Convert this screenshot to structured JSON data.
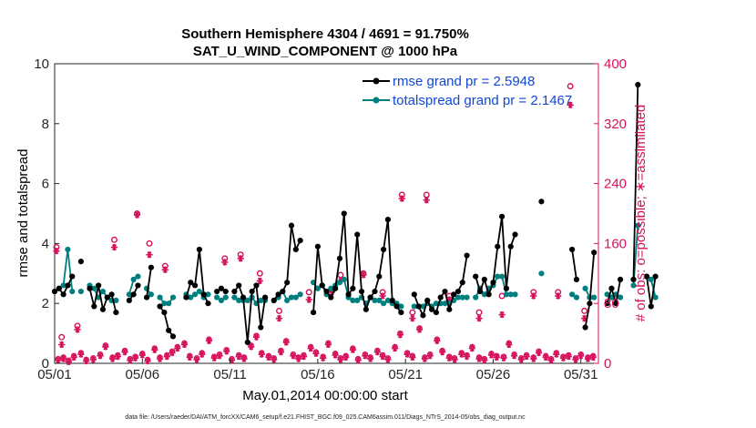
{
  "chart_data": {
    "type": "line",
    "title_line1": "Southern Hemisphere 4304 / 4691 = 91.750%",
    "title_line2": "SAT_U_WIND_COMPONENT @ 1000 hPa",
    "xlabel": "May.01,2014 00:00:00 start",
    "ylabel_left": "rmse and totalspread",
    "ylabel_right": "# of obs: o=possible; ∗=assimilated",
    "footer": "data file: /Users/raeder/DAI/ATM_forcXX/CAM6_setup/f.e21.FHIST_BGC.f09_025.CAM6assim.011/Diags_NTrS_2014-05/obs_diag_output.nc",
    "x_tick_labels": [
      "05/01",
      "05/06",
      "05/11",
      "05/16",
      "05/21",
      "05/26",
      "05/31"
    ],
    "x_tick_days": [
      1,
      6,
      11,
      16,
      21,
      26,
      31
    ],
    "xlim": [
      1,
      32
    ],
    "ylim_left": [
      0,
      10
    ],
    "yticks_left": [
      "0",
      "2",
      "4",
      "6",
      "8",
      "10"
    ],
    "ylim_right": [
      0,
      400
    ],
    "yticks_right": [
      "0",
      "80",
      "160",
      "240",
      "320",
      "400"
    ],
    "colors": {
      "rmse": "#000000",
      "spread": "#007f7f",
      "obs": "#d6115c",
      "legend_text": "#1147d6",
      "axis_right": "#d6115c"
    },
    "legend": [
      {
        "name": "rmse grand pr = 2.5948"
      },
      {
        "name": "totalspread grand pr = 2.1467"
      }
    ],
    "series": [
      {
        "name": "rmse",
        "step_days": 0.25,
        "x0": 1.0,
        "values": [
          2.4,
          2.5,
          2.3,
          2.6,
          2.9,
          null,
          3.4,
          null,
          2.5,
          1.9,
          2.6,
          1.8,
          2.2,
          2.3,
          1.7,
          null,
          null,
          2.1,
          2.3,
          2.6,
          null,
          2.2,
          3.2,
          null,
          1.9,
          1.7,
          1.1,
          0.9,
          null,
          null,
          2.2,
          2.7,
          2.6,
          3.8,
          2.3,
          2.0,
          null,
          2.4,
          2.5,
          2.4,
          null,
          2.4,
          2.6,
          2.2,
          0.7,
          2.4,
          2.6,
          1.2,
          2.2,
          null,
          2.1,
          2.3,
          2.4,
          2.7,
          4.6,
          3.8,
          4.1,
          null,
          null,
          1.7,
          3.9,
          2.6,
          2.4,
          2.2,
          2.5,
          3.5,
          5.0,
          2.3,
          2.5,
          4.3,
          2.4,
          1.8,
          2.2,
          2.4,
          2.9,
          3.8,
          4.8,
          2.1,
          1.9,
          1.7,
          null,
          null,
          2.3,
          1.9,
          1.6,
          2.1,
          1.8,
          1.7,
          2.2,
          2.4,
          1.8,
          2.3,
          2.4,
          2.7,
          3.6,
          null,
          2.9,
          2.4,
          2.8,
          2.3,
          2.7,
          3.9,
          4.9,
          2.5,
          3.9,
          4.3,
          null,
          null,
          null,
          null,
          null,
          5.4,
          null,
          null,
          null,
          null,
          null,
          null,
          3.8,
          2.8,
          null,
          1.2,
          2.0,
          3.7,
          null,
          null,
          2.0,
          2.5,
          2.0,
          2.8,
          null,
          null,
          2.8,
          9.3,
          null,
          2.9,
          1.9,
          2.9
        ]
      },
      {
        "name": "totalspread",
        "step_days": 0.25,
        "x0": 1.0,
        "values": [
          2.4,
          2.5,
          2.6,
          3.8,
          2.4,
          null,
          2.4,
          null,
          2.6,
          2.5,
          2.2,
          2.4,
          2.2,
          2.1,
          2.1,
          null,
          null,
          2.3,
          2.8,
          2.9,
          null,
          2.5,
          2.3,
          null,
          2.2,
          2.0,
          2.0,
          2.2,
          null,
          null,
          2.3,
          2.2,
          2.3,
          2.4,
          2.2,
          2.3,
          null,
          2.2,
          2.1,
          2.2,
          null,
          2.2,
          2.1,
          2.1,
          2.1,
          2.2,
          2.0,
          2.1,
          2.1,
          null,
          2.1,
          2.2,
          2.4,
          2.1,
          2.2,
          2.2,
          2.3,
          null,
          null,
          2.7,
          2.5,
          2.6,
          2.3,
          2.5,
          2.6,
          2.7,
          2.8,
          2.2,
          2.1,
          2.1,
          2.2,
          2.0,
          2.2,
          2.1,
          2.1,
          2.0,
          2.1,
          2.0,
          2.0,
          1.9,
          null,
          null,
          1.9,
          1.9,
          1.9,
          2.0,
          1.9,
          2.0,
          2.0,
          2.0,
          2.0,
          2.1,
          2.2,
          2.2,
          2.2,
          null,
          2.2,
          2.5,
          2.3,
          2.5,
          2.6,
          2.9,
          2.9,
          2.3,
          2.3,
          2.3,
          null,
          null,
          null,
          null,
          null,
          3.0,
          null,
          null,
          null,
          null,
          null,
          null,
          2.3,
          2.2,
          null,
          2.5,
          2.2,
          2.2,
          null,
          null,
          2.3,
          2.2,
          2.3,
          2.2,
          null,
          null,
          2.6,
          4.6,
          null,
          2.9,
          2.8,
          2.2
        ]
      },
      {
        "name": "obs possible",
        "marker": "o",
        "points": [
          [
            1.1,
            155
          ],
          [
            1.4,
            35
          ],
          [
            2.3,
            50
          ],
          [
            4.4,
            165
          ],
          [
            5.7,
            200
          ],
          [
            6.4,
            160
          ],
          [
            7.3,
            130
          ],
          [
            10.7,
            140
          ],
          [
            11.6,
            145
          ],
          [
            12.7,
            120
          ],
          [
            13.8,
            70
          ],
          [
            15.5,
            95
          ],
          [
            16.8,
            98
          ],
          [
            17.3,
            118
          ],
          [
            18.6,
            120
          ],
          [
            19.7,
            95
          ],
          [
            20.8,
            225
          ],
          [
            21.4,
            68
          ],
          [
            22.2,
            225
          ],
          [
            23.5,
            90
          ],
          [
            25.2,
            68
          ],
          [
            26.5,
            90
          ],
          [
            28.3,
            95
          ],
          [
            29.7,
            95
          ],
          [
            30.4,
            370
          ],
          [
            31.2,
            70
          ]
        ]
      },
      {
        "name": "obs assimilated",
        "marker": "*",
        "points": [
          [
            1.1,
            150
          ],
          [
            1.4,
            25
          ],
          [
            2.3,
            45
          ],
          [
            4.4,
            155
          ],
          [
            5.7,
            198
          ],
          [
            6.4,
            145
          ],
          [
            7.3,
            125
          ],
          [
            10.7,
            135
          ],
          [
            11.6,
            140
          ],
          [
            12.7,
            110
          ],
          [
            13.8,
            60
          ],
          [
            15.5,
            85
          ],
          [
            16.8,
            95
          ],
          [
            17.3,
            110
          ],
          [
            18.6,
            118
          ],
          [
            19.7,
            90
          ],
          [
            20.8,
            220
          ],
          [
            21.4,
            60
          ],
          [
            22.2,
            218
          ],
          [
            23.5,
            85
          ],
          [
            25.2,
            60
          ],
          [
            26.5,
            65
          ],
          [
            28.3,
            90
          ],
          [
            29.7,
            90
          ],
          [
            30.4,
            345
          ],
          [
            31.2,
            60
          ]
        ]
      }
    ],
    "low_obs_days": [
      1.2,
      1.5,
      1.8,
      2.1,
      2.5,
      2.8,
      3.2,
      3.6,
      3.9,
      4.3,
      4.6,
      5.0,
      5.3,
      5.6,
      6.0,
      6.3,
      6.7,
      7.0,
      7.4,
      7.7,
      8.0,
      8.4,
      8.7,
      9.1,
      9.4,
      9.8,
      10.1,
      10.4,
      10.8,
      11.1,
      11.5,
      11.8,
      12.2,
      12.5,
      12.8,
      13.2,
      13.5,
      13.9,
      14.2,
      14.6,
      14.9,
      15.2,
      15.6,
      15.9,
      16.3,
      16.6,
      17.0,
      17.3,
      17.6,
      18.0,
      18.3,
      18.7,
      19.0,
      19.4,
      19.7,
      20.0,
      20.4,
      20.7,
      21.1,
      21.4,
      21.8,
      22.1,
      22.4,
      22.8,
      23.1,
      23.5,
      23.8,
      24.2,
      24.5,
      24.8,
      25.2,
      25.5,
      25.9,
      26.2,
      26.6,
      26.9,
      27.2,
      27.6,
      27.9,
      28.3,
      28.6,
      29.0,
      29.3,
      29.6,
      30.0,
      30.3,
      30.7,
      31.0,
      31.4,
      31.7
    ],
    "low_obs_values": [
      4,
      6,
      2,
      8,
      12,
      3,
      5,
      10,
      22,
      6,
      9,
      15,
      4,
      7,
      11,
      3,
      18,
      6,
      9,
      14,
      20,
      25,
      8,
      5,
      12,
      30,
      7,
      10,
      16,
      4,
      9,
      6,
      22,
      35,
      12,
      8,
      5,
      15,
      28,
      10,
      6,
      9,
      20,
      13,
      7,
      25,
      11,
      5,
      8,
      18,
      4,
      10,
      6,
      15,
      9,
      5,
      20,
      38,
      12,
      8,
      45,
      6,
      10,
      30,
      15,
      7,
      5,
      12,
      9,
      20,
      6,
      4,
      11,
      8,
      7,
      25,
      10,
      5,
      9,
      6,
      14,
      8,
      4,
      12,
      7,
      9,
      5,
      10,
      6,
      8
    ]
  }
}
